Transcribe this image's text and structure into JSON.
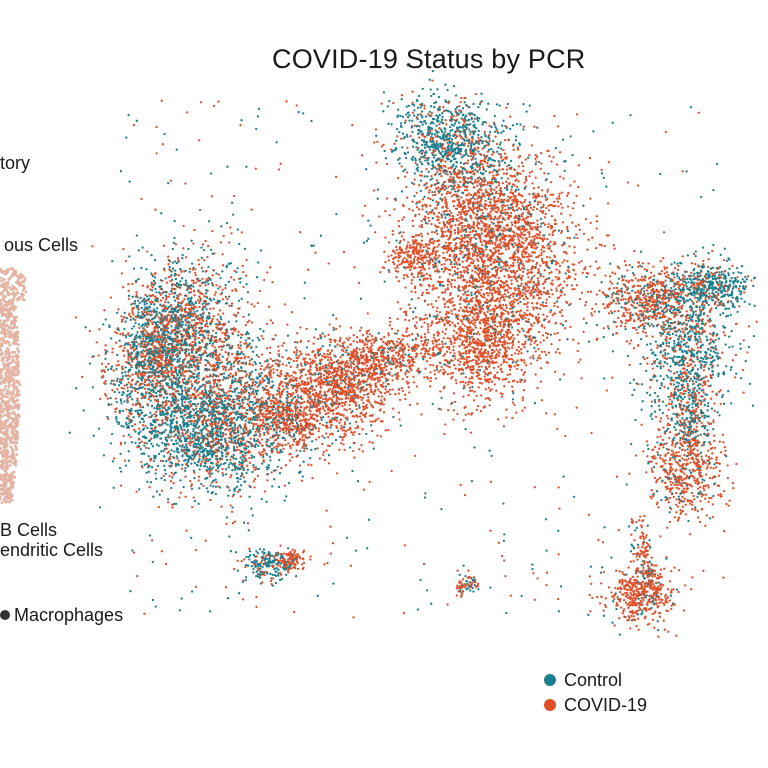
{
  "chart_data": {
    "type": "scatter",
    "title": "COVID-19 Status by PCR",
    "xlabel": "",
    "ylabel": "",
    "legend_position": "bottom-right",
    "series": [
      {
        "name": "Control",
        "color": "#1a7f8e"
      },
      {
        "name": "COVID-19",
        "color": "#e0502a"
      }
    ]
  },
  "left_panel": {
    "labels": [
      "tory",
      "ous Cells",
      "B Cells",
      "endritic Cells",
      "Macrophages"
    ],
    "blob_color": "#e4b3a2",
    "macrophage_dot_color": "#333333"
  }
}
